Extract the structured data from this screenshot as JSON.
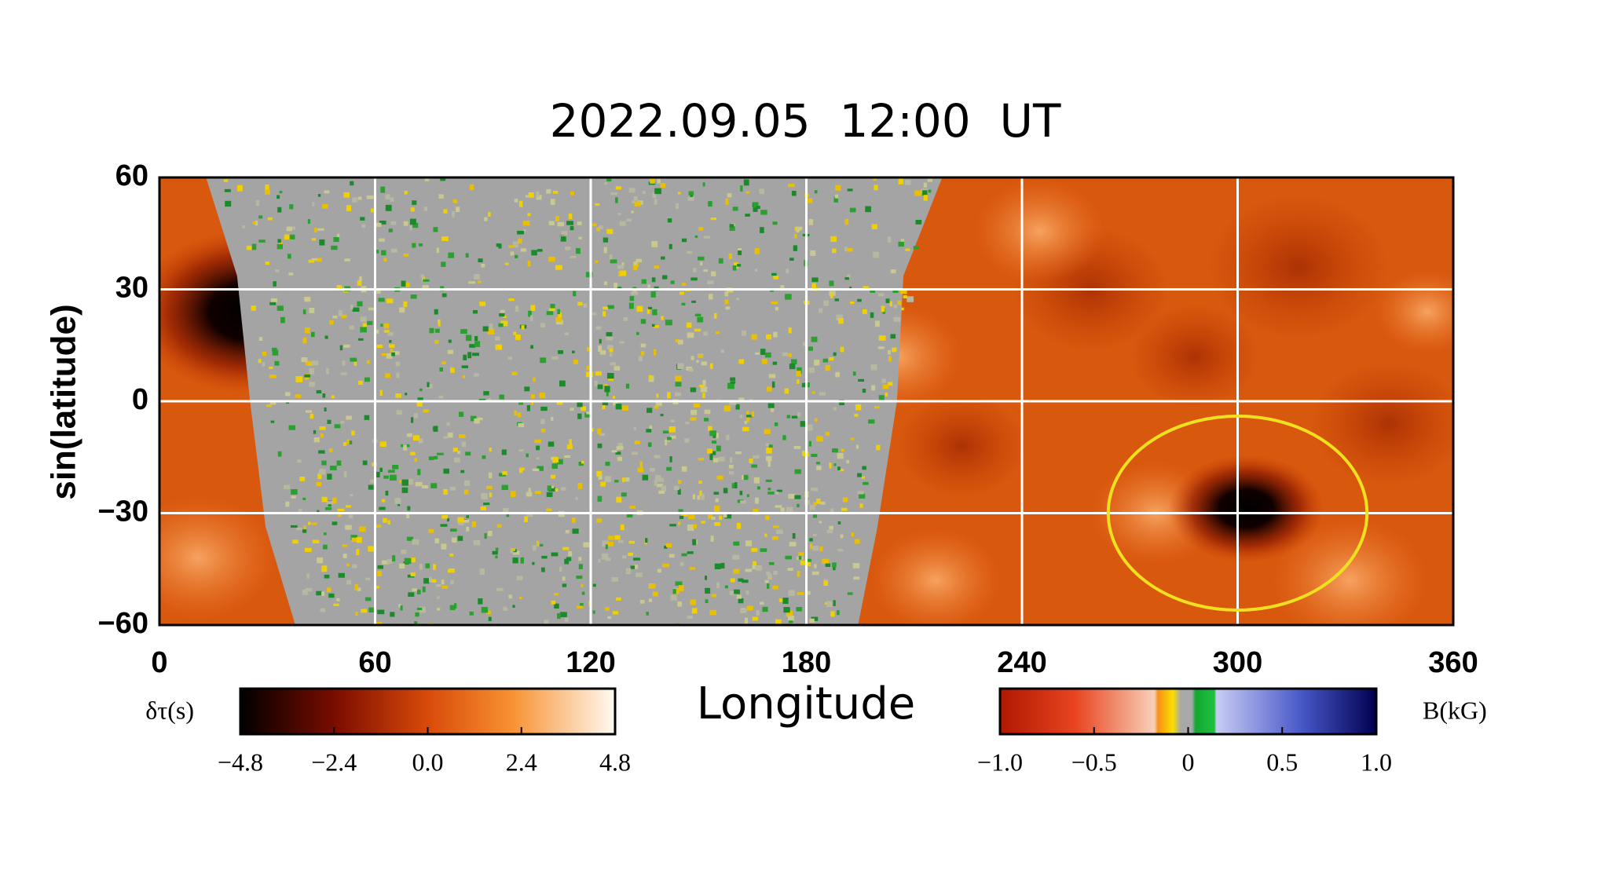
{
  "chart_data": {
    "type": "heatmap",
    "title": "2022.09.05  12:00  UT",
    "x_label": "Longitude",
    "y_label": "sin(latitude)",
    "xlim": [
      0,
      360
    ],
    "xticks": [
      0,
      60,
      120,
      180,
      240,
      300,
      360
    ],
    "ylim": [
      -60,
      60
    ],
    "yticks": [
      {
        "value": -60,
        "label": "−60"
      },
      {
        "value": -30,
        "label": "−30"
      },
      0,
      30,
      60
    ],
    "grid": true,
    "grid_color": "#ffffff",
    "highlight": {
      "x": 300,
      "y": -30,
      "width": 72,
      "height": 52,
      "color": "#f0e020"
    },
    "colorbars": [
      {
        "label": "δτ(s)",
        "lim": [
          -4.8,
          4.8
        ],
        "ticks": [
          {
            "value": -4.8,
            "label": "−4.8"
          },
          {
            "value": -2.4,
            "label": "−2.4"
          },
          {
            "value": 0,
            "label": "0.0"
          },
          2.4,
          4.8
        ]
      },
      {
        "label": "B(kG)",
        "lim": [
          -1,
          1
        ],
        "ticks": [
          {
            "value": -1,
            "label": "−1.0"
          },
          {
            "value": -0.5,
            "label": "−0.5"
          },
          0,
          0.5,
          {
            "value": 1,
            "label": "1.0"
          }
        ]
      }
    ]
  }
}
